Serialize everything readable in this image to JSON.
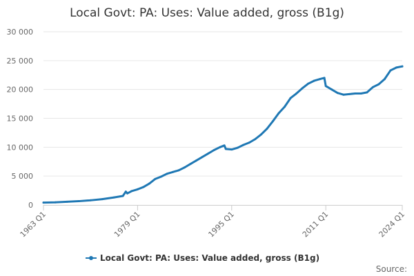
{
  "chart_data": {
    "type": "line",
    "title": "Local Govt: PA: Uses: Value added, gross (B1g)",
    "source_label": "Source:",
    "ylim": [
      0,
      30000
    ],
    "yticks": [
      {
        "value": 0,
        "label": "0"
      },
      {
        "value": 5000,
        "label": "5 000"
      },
      {
        "value": 10000,
        "label": "10 000"
      },
      {
        "value": 15000,
        "label": "15 000"
      },
      {
        "value": 20000,
        "label": "20 000"
      },
      {
        "value": 25000,
        "label": "25 000"
      },
      {
        "value": 30000,
        "label": "30 000"
      }
    ],
    "xrange": [
      "1963 Q1",
      "2024 Q1"
    ],
    "xticks": [
      "1963 Q1",
      "1979 Q1",
      "1995 Q1",
      "2011 Q1",
      "2024 Q1"
    ],
    "grid": true,
    "legend_position": "bottom",
    "color": "#1f78b4",
    "series": [
      {
        "name": "Local Govt: PA: Uses: Value added, gross (B1g)",
        "points": [
          [
            "1963 Q1",
            400
          ],
          [
            "1965 Q1",
            450
          ],
          [
            "1967 Q1",
            550
          ],
          [
            "1969 Q1",
            650
          ],
          [
            "1971 Q1",
            800
          ],
          [
            "1973 Q1",
            1000
          ],
          [
            "1975 Q1",
            1300
          ],
          [
            "1976 Q3",
            1550
          ],
          [
            "1977 Q1",
            2300
          ],
          [
            "1977 Q2",
            2000
          ],
          [
            "1978 Q1",
            2400
          ],
          [
            "1979 Q1",
            2700
          ],
          [
            "1980 Q1",
            3100
          ],
          [
            "1981 Q1",
            3700
          ],
          [
            "1982 Q1",
            4500
          ],
          [
            "1983 Q1",
            4900
          ],
          [
            "1984 Q1",
            5400
          ],
          [
            "1985 Q1",
            5700
          ],
          [
            "1986 Q1",
            6000
          ],
          [
            "1987 Q1",
            6500
          ],
          [
            "1988 Q1",
            7100
          ],
          [
            "1989 Q1",
            7700
          ],
          [
            "1990 Q1",
            8300
          ],
          [
            "1991 Q1",
            8900
          ],
          [
            "1992 Q1",
            9500
          ],
          [
            "1993 Q1",
            10000
          ],
          [
            "1993 Q4",
            10300
          ],
          [
            "1994 Q1",
            9700
          ],
          [
            "1995 Q1",
            9600
          ],
          [
            "1996 Q1",
            9900
          ],
          [
            "1997 Q1",
            10400
          ],
          [
            "1998 Q1",
            10800
          ],
          [
            "1999 Q1",
            11400
          ],
          [
            "2000 Q1",
            12200
          ],
          [
            "2001 Q1",
            13200
          ],
          [
            "2002 Q1",
            14500
          ],
          [
            "2003 Q1",
            15900
          ],
          [
            "2004 Q1",
            17000
          ],
          [
            "2005 Q1",
            18500
          ],
          [
            "2006 Q1",
            19300
          ],
          [
            "2007 Q1",
            20200
          ],
          [
            "2008 Q1",
            21000
          ],
          [
            "2009 Q1",
            21500
          ],
          [
            "2010 Q1",
            21800
          ],
          [
            "2010 Q4",
            22000
          ],
          [
            "2011 Q1",
            20600
          ],
          [
            "2012 Q1",
            20000
          ],
          [
            "2013 Q1",
            19400
          ],
          [
            "2014 Q1",
            19100
          ],
          [
            "2015 Q1",
            19200
          ],
          [
            "2016 Q1",
            19300
          ],
          [
            "2017 Q1",
            19300
          ],
          [
            "2018 Q1",
            19500
          ],
          [
            "2019 Q1",
            20400
          ],
          [
            "2020 Q1",
            20900
          ],
          [
            "2021 Q1",
            21800
          ],
          [
            "2022 Q1",
            23300
          ],
          [
            "2023 Q1",
            23800
          ],
          [
            "2024 Q1",
            24000
          ]
        ]
      }
    ]
  }
}
